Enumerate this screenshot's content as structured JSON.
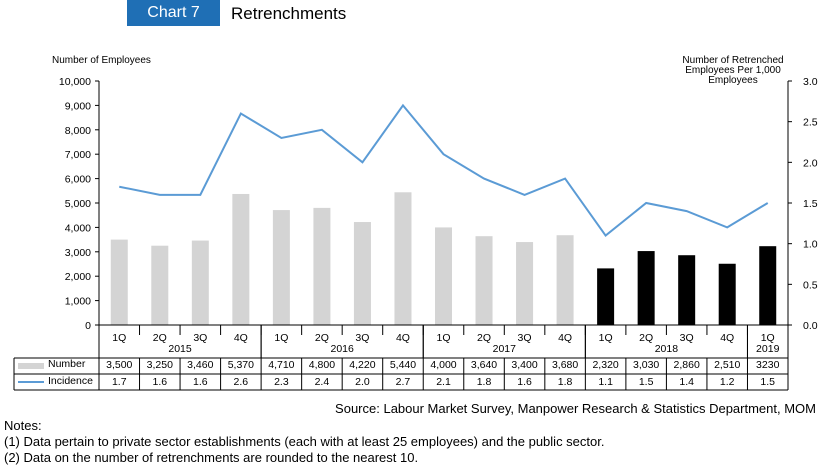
{
  "header": {
    "badge": "Chart 7",
    "title": "Retrenchments"
  },
  "chart_data": {
    "type": "bar",
    "title": "Retrenchments",
    "ylabel": "Number of Employees",
    "y2label_lines": [
      "Number of Retrenched",
      "Employees Per 1,000",
      "Employees"
    ],
    "ylim": [
      0,
      10000
    ],
    "y2lim": [
      0,
      3.0
    ],
    "yticks": [
      "0",
      "1,000",
      "2,000",
      "3,000",
      "4,000",
      "5,000",
      "6,000",
      "7,000",
      "8,000",
      "9,000",
      "10,000"
    ],
    "y2ticks": [
      "0.0",
      "0.5",
      "1.0",
      "1.5",
      "2.0",
      "2.5",
      "3.0"
    ],
    "categories": [
      "1Q",
      "2Q",
      "3Q",
      "4Q",
      "1Q",
      "2Q",
      "3Q",
      "4Q",
      "1Q",
      "2Q",
      "3Q",
      "4Q",
      "1Q",
      "2Q",
      "3Q",
      "4Q",
      "1Q"
    ],
    "years": [
      {
        "label": "2015",
        "start": 0,
        "end": 3
      },
      {
        "label": "2016",
        "start": 4,
        "end": 7
      },
      {
        "label": "2017",
        "start": 8,
        "end": 11
      },
      {
        "label": "2018",
        "start": 12,
        "end": 15
      },
      {
        "label": "2019",
        "start": 16,
        "end": 16
      }
    ],
    "series": [
      {
        "name": "Number",
        "type": "bar",
        "values": [
          3500,
          3250,
          3460,
          5370,
          4710,
          4800,
          4220,
          5440,
          4000,
          3640,
          3400,
          3680,
          2320,
          3030,
          2860,
          2510,
          3230
        ],
        "labels": [
          "3,500",
          "3,250",
          "3,460",
          "5,370",
          "4,710",
          "4,800",
          "4,220",
          "5,440",
          "4,000",
          "3,640",
          "3,400",
          "3,680",
          "2,320",
          "3,030",
          "2,860",
          "2,510",
          "3230"
        ],
        "color": "#d4d4d4",
        "highlight_color": "#000000",
        "highlight_from": 12
      },
      {
        "name": "Incidence",
        "type": "line",
        "axis": "right",
        "values": [
          1.7,
          1.6,
          1.6,
          2.6,
          2.3,
          2.4,
          2.0,
          2.7,
          2.1,
          1.8,
          1.6,
          1.8,
          1.1,
          1.5,
          1.4,
          1.2,
          1.5
        ],
        "labels": [
          "1.7",
          "1.6",
          "1.6",
          "2.6",
          "2.3",
          "2.4",
          "2.0",
          "2.7",
          "2.1",
          "1.8",
          "1.6",
          "1.8",
          "1.1",
          "1.5",
          "1.4",
          "1.2",
          "1.5"
        ],
        "color": "#5b9bd5"
      }
    ],
    "grid": false,
    "legend": "table-bottom-left"
  },
  "source": "Source: Labour Market Survey, Manpower Research & Statistics Department, MOM",
  "notes": {
    "heading": "Notes:",
    "items": [
      "(1)  Data pertain to private sector establishments (each with at least 25 employees) and the public sector.",
      "(2)  Data on the number of retrenchments are rounded to the nearest 10."
    ]
  }
}
